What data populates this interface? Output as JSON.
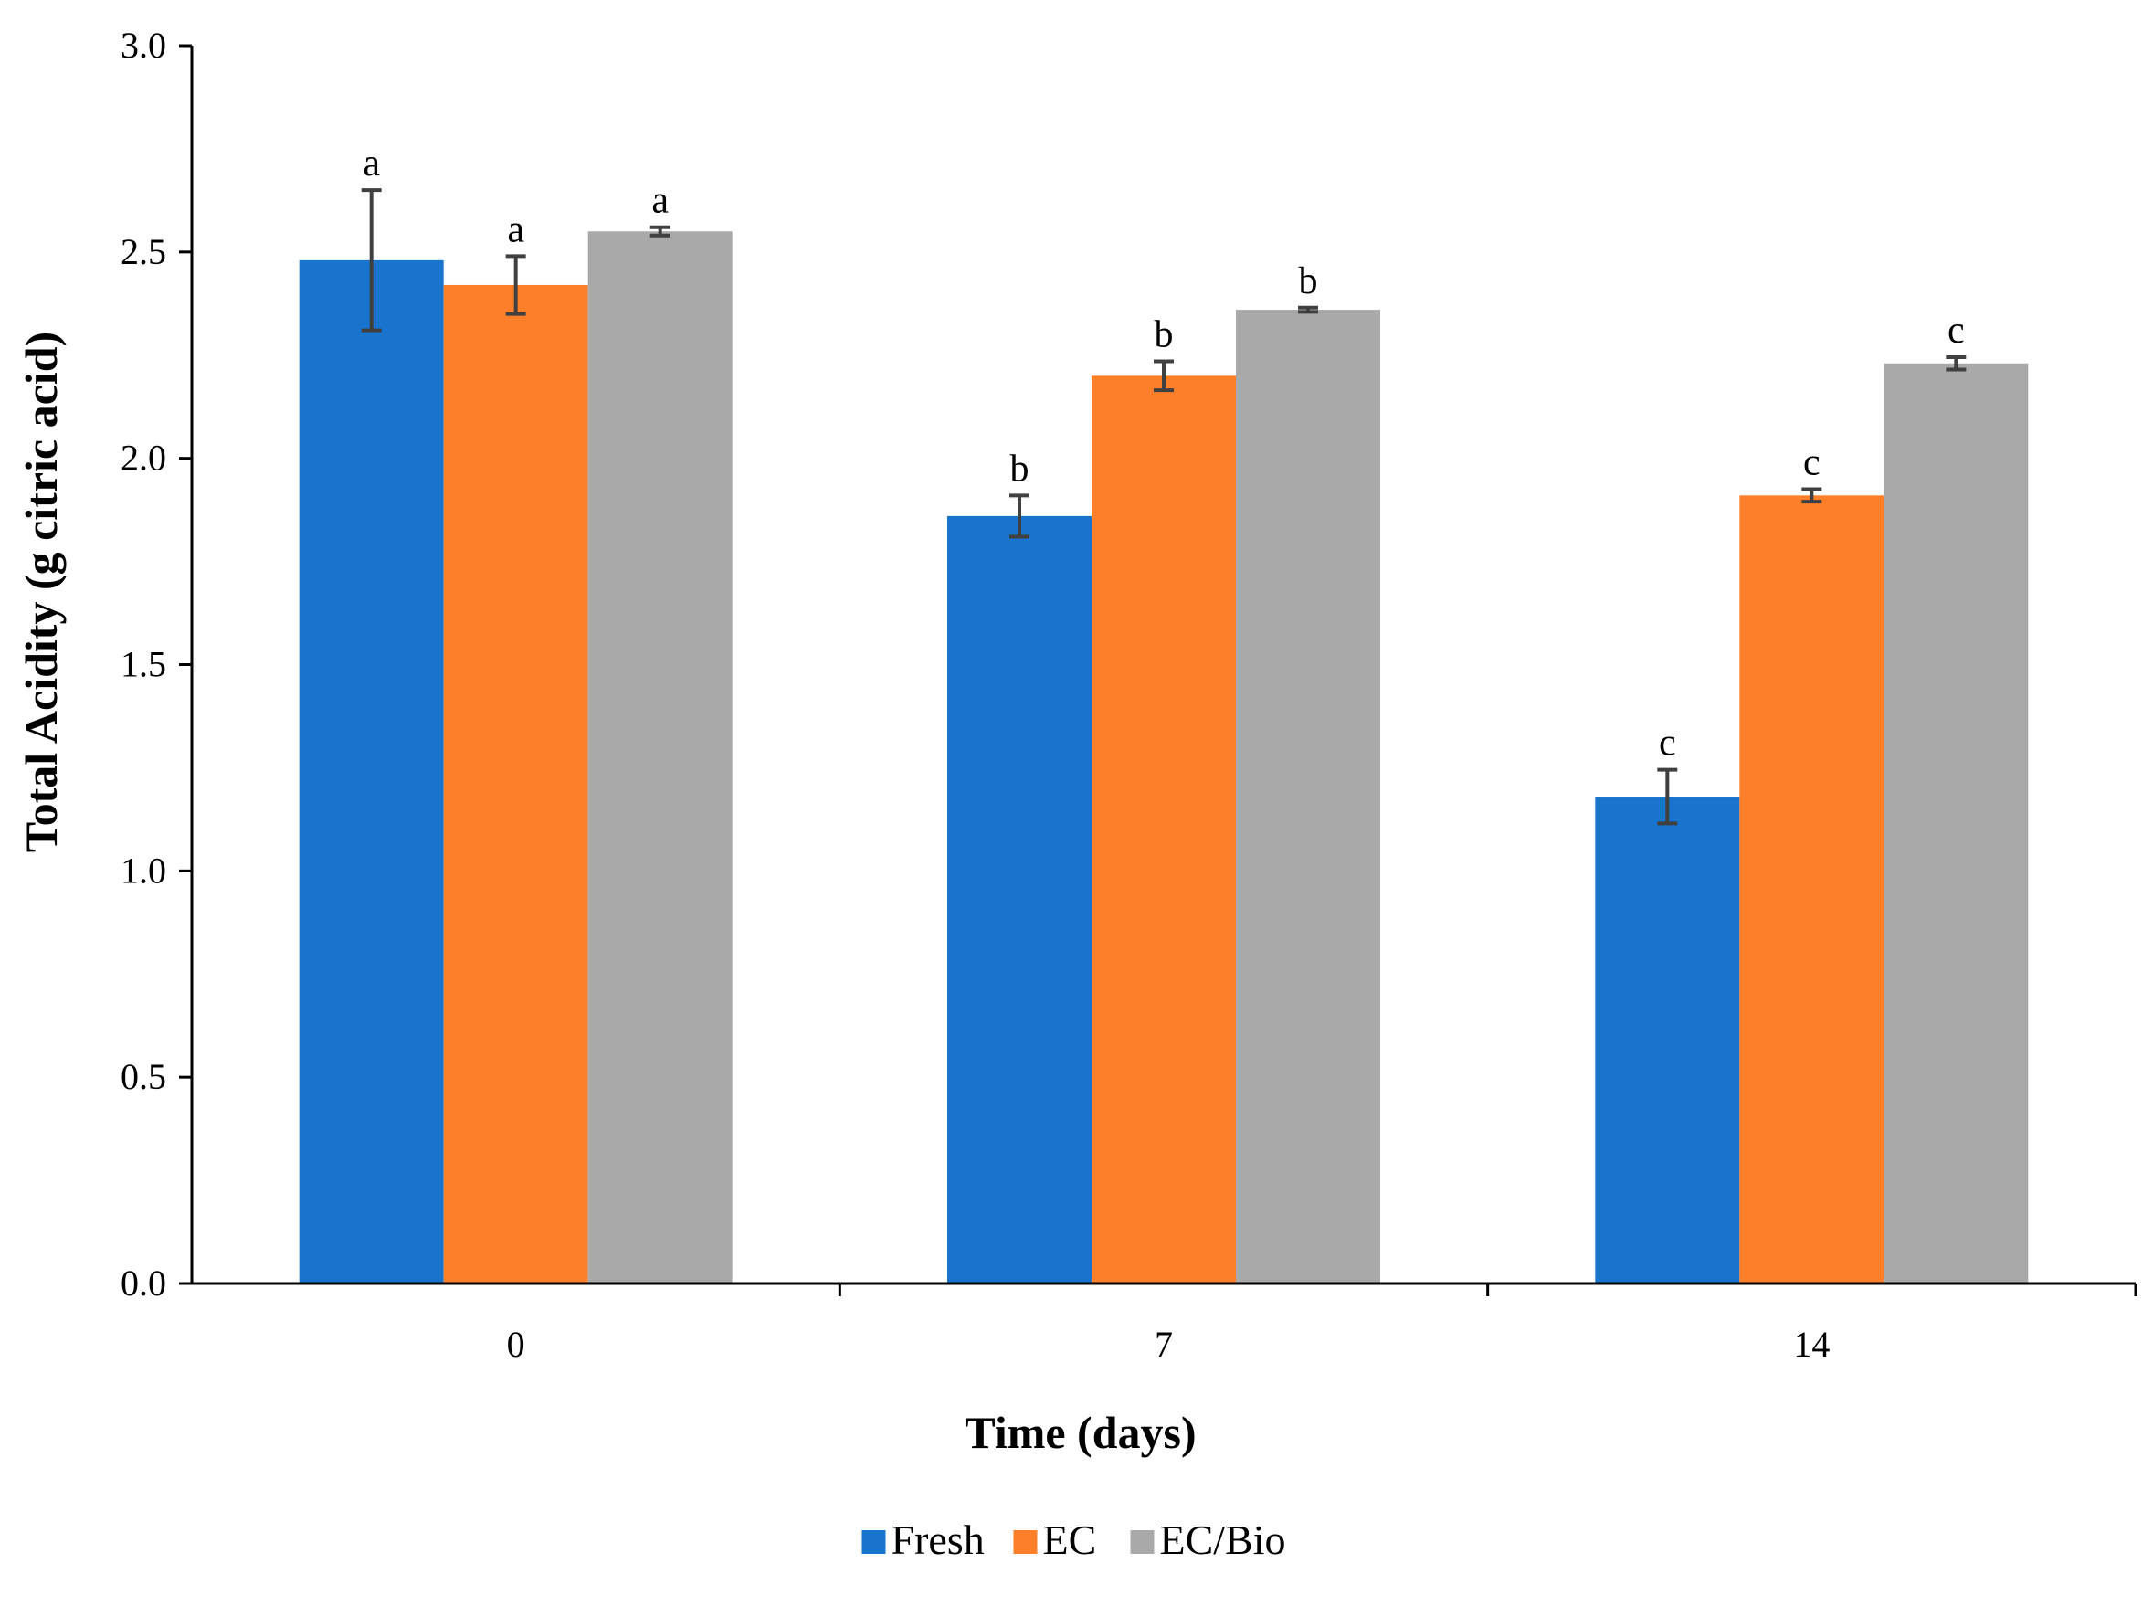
{
  "chart_data": {
    "type": "bar",
    "title": "",
    "xlabel": "Time (days)",
    "ylabel": "Total Acidity (g citric acid)",
    "ylim": [
      0,
      3.0
    ],
    "yticks": [
      "0.0",
      "0.5",
      "1.0",
      "1.5",
      "2.0",
      "2.5",
      "3.0"
    ],
    "categories": [
      "0",
      "7",
      "14"
    ],
    "series": [
      {
        "name": "Fresh",
        "color": "#1874CD",
        "values": [
          2.48,
          1.86,
          1.18
        ],
        "errors": [
          0.17,
          0.05,
          0.065
        ],
        "labels": [
          "a",
          "b",
          "c"
        ]
      },
      {
        "name": "EC",
        "color": "#FE7F2A",
        "values": [
          2.42,
          2.2,
          1.91
        ],
        "errors": [
          0.07,
          0.035,
          0.015
        ],
        "labels": [
          "a",
          "b",
          "c"
        ]
      },
      {
        "name": "EC/Bio",
        "color": "#A9A9A9",
        "values": [
          2.55,
          2.36,
          2.23
        ],
        "errors": [
          0.01,
          0.005,
          0.015
        ],
        "labels": [
          "a",
          "b",
          "c"
        ]
      }
    ],
    "legend_position": "bottom",
    "grid": false
  }
}
